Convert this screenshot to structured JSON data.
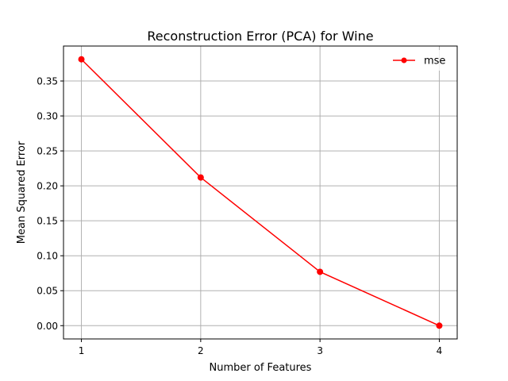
{
  "chart_data": {
    "type": "line",
    "title": "Reconstruction Error (PCA) for Wine",
    "xlabel": "Number of Features",
    "ylabel": "Mean Squared Error",
    "x": [
      1,
      2,
      3,
      4
    ],
    "series": [
      {
        "name": "mse",
        "values": [
          0.381,
          0.212,
          0.077,
          0.0
        ],
        "color": "#ff0000",
        "marker": "circle"
      }
    ],
    "xlim": [
      0.85,
      4.15
    ],
    "ylim": [
      -0.019,
      0.4
    ],
    "xticks": [
      1,
      2,
      3,
      4
    ],
    "xtick_labels": [
      "1",
      "2",
      "3",
      "4"
    ],
    "yticks": [
      0.0,
      0.05,
      0.1,
      0.15,
      0.2,
      0.25,
      0.3,
      0.35
    ],
    "ytick_labels": [
      "0.00",
      "0.05",
      "0.10",
      "0.15",
      "0.20",
      "0.25",
      "0.30",
      "0.35"
    ],
    "grid": true,
    "legend": {
      "position": "top-right",
      "entries": [
        "mse"
      ]
    }
  }
}
